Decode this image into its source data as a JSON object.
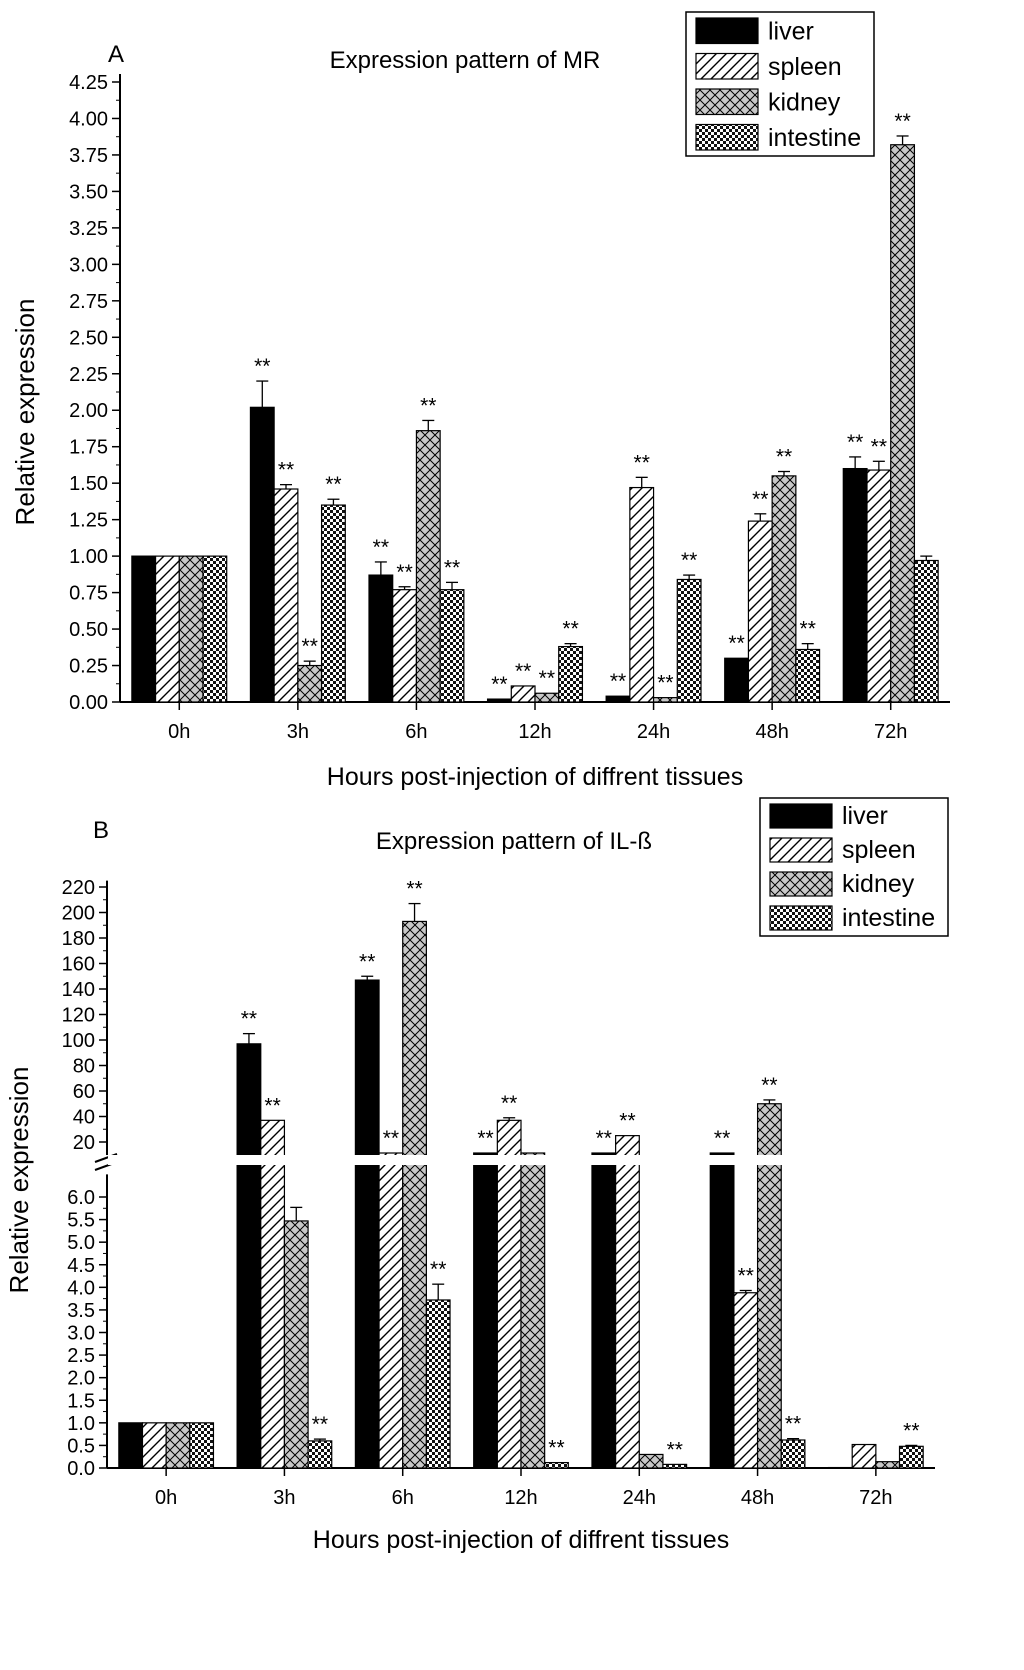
{
  "chart_data": [
    {
      "panel_letter": "A",
      "type": "bar",
      "title": "Expression pattern of MR",
      "xlabel": "Hours post-injection of diffrent tissues",
      "ylabel": "Relative expression",
      "categories": [
        "0h",
        "3h",
        "6h",
        "12h",
        "24h",
        "48h",
        "72h"
      ],
      "ylim": [
        0,
        4.25
      ],
      "yticks": [
        "0.00",
        "0.25",
        "0.50",
        "0.75",
        "1.00",
        "1.25",
        "1.50",
        "1.75",
        "2.00",
        "2.25",
        "2.50",
        "2.75",
        "3.00",
        "3.25",
        "3.50",
        "3.75",
        "4.00",
        "4.25"
      ],
      "legend": {
        "position": "top-right"
      },
      "series": [
        {
          "name": "liver",
          "pattern": "solid",
          "values": [
            1.0,
            2.02,
            0.87,
            0.02,
            0.04,
            0.3,
            1.6
          ],
          "errors": [
            0,
            0.18,
            0.09,
            0,
            0,
            0,
            0.08
          ],
          "marks": [
            "",
            "**",
            "**",
            "**",
            "**",
            "**",
            "**"
          ]
        },
        {
          "name": "spleen",
          "pattern": "diagonal",
          "values": [
            1.0,
            1.46,
            0.77,
            0.11,
            1.47,
            1.24,
            1.59
          ],
          "errors": [
            0,
            0.03,
            0.02,
            0,
            0.07,
            0.05,
            0.06
          ],
          "marks": [
            "",
            "**",
            "**",
            "**",
            "**",
            "**",
            "**"
          ]
        },
        {
          "name": "kidney",
          "pattern": "crosshatch",
          "values": [
            1.0,
            0.25,
            1.86,
            0.06,
            0.03,
            1.55,
            3.82
          ],
          "errors": [
            0,
            0.03,
            0.07,
            0,
            0,
            0.03,
            0.06
          ],
          "marks": [
            "",
            "**",
            "**",
            "**",
            "**",
            "**",
            "**"
          ]
        },
        {
          "name": "intestine",
          "pattern": "checker",
          "values": [
            1.0,
            1.35,
            0.77,
            0.38,
            0.84,
            0.36,
            0.97
          ],
          "errors": [
            0,
            0.04,
            0.05,
            0.02,
            0.03,
            0.04,
            0.03
          ],
          "marks": [
            "",
            "**",
            "**",
            "**",
            "**",
            "**",
            ""
          ]
        }
      ]
    },
    {
      "panel_letter": "B",
      "type": "bar",
      "title": "Expression pattern of IL-ß",
      "xlabel": "Hours post-injection of diffrent tissues",
      "ylabel": "Relative expression",
      "categories": [
        "0h",
        "3h",
        "6h",
        "12h",
        "24h",
        "48h",
        "72h"
      ],
      "axis_break": {
        "lower_range": [
          0,
          6.5
        ],
        "upper_range": [
          6.5,
          225
        ]
      },
      "yticks_lower": [
        "0.0",
        "0.5",
        "1.0",
        "1.5",
        "2.0",
        "2.5",
        "3.0",
        "3.5",
        "4.0",
        "4.5",
        "5.0",
        "5.5",
        "6.0"
      ],
      "yticks_upper": [
        "20",
        "40",
        "60",
        "80",
        "100",
        "120",
        "140",
        "160",
        "180",
        "200",
        "220"
      ],
      "legend": {
        "position": "top-right"
      },
      "series": [
        {
          "name": "liver",
          "pattern": "solid",
          "values": [
            1.0,
            97,
            147,
            12,
            10,
            16,
            0.01
          ],
          "errors": [
            0,
            8,
            3,
            0,
            0,
            0,
            0
          ],
          "marks": [
            "",
            "**",
            "**",
            "**",
            "**",
            "**",
            ""
          ]
        },
        {
          "name": "spleen",
          "pattern": "diagonal",
          "values": [
            1.0,
            37,
            17,
            37,
            25,
            3.88,
            0.52
          ],
          "errors": [
            0,
            0,
            0,
            2,
            0,
            0.05,
            0
          ],
          "marks": [
            "",
            "**",
            "**",
            "**",
            "**",
            "**",
            ""
          ]
        },
        {
          "name": "kidney",
          "pattern": "crosshatch",
          "values": [
            1.0,
            5.47,
            193,
            7.2,
            0.3,
            50,
            0.14
          ],
          "errors": [
            0,
            0.3,
            14,
            0,
            0,
            3,
            0
          ],
          "marks": [
            "",
            "",
            "**",
            "",
            "",
            "**",
            ""
          ]
        },
        {
          "name": "intestine",
          "pattern": "checker",
          "values": [
            1.0,
            0.6,
            3.72,
            0.12,
            0.08,
            0.62,
            0.48
          ],
          "errors": [
            0,
            0.04,
            0.35,
            0,
            0,
            0.03,
            0.02
          ],
          "marks": [
            "",
            "**",
            "**",
            "**",
            "**",
            "**",
            "**"
          ]
        }
      ]
    }
  ]
}
